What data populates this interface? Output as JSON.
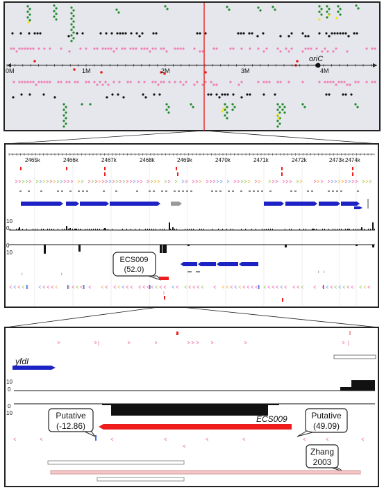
{
  "genome_panel": {
    "ticks": [
      "0M",
      "1M",
      "2M",
      "3M",
      "4M"
    ],
    "origin_label": "oriC"
  },
  "region_panel": {
    "ticks": [
      "2465k",
      "2466k",
      "2467k",
      "2468k",
      "2469k",
      "2470k",
      "2471k",
      "2472k",
      "2473k",
      "2474k"
    ],
    "scale_max": "10",
    "scale_zero": "0",
    "callout_name": "ECS009",
    "callout_value": "(52.0)"
  },
  "zoom_panel": {
    "gene_label": "yfdI",
    "scale_max": "10",
    "scale_zero": "0",
    "srna_label": "ECS009",
    "left_callout_name": "Putative",
    "left_callout_value": "(-12.86)",
    "right_callout_name": "Putative",
    "right_callout_value": "(49.09)",
    "ref_line1": "Zhang",
    "ref_line2": "2003"
  },
  "colors": {
    "panel_top_bg": "#e5e7ec",
    "marker_line": "#e8322c",
    "gene_blue": "#1d22c4",
    "pink": "#f07fb6",
    "green": "#1f8a2a",
    "yellow": "#f2e600",
    "red": "#ee1c1c"
  }
}
